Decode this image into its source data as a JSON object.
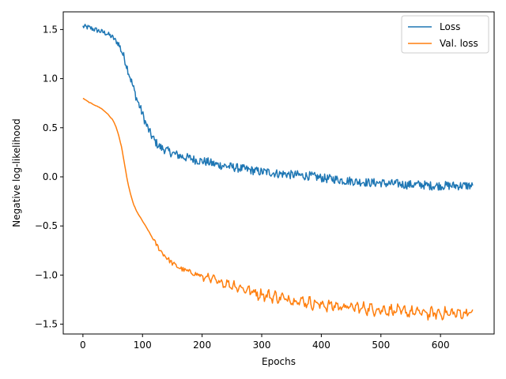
{
  "chart_data": {
    "type": "line",
    "title": "",
    "xlabel": "Epochs",
    "ylabel": "Negative log-likelihood",
    "xlim": [
      -33,
      690
    ],
    "ylim": [
      -1.6,
      1.68
    ],
    "x_ticks": [
      0,
      100,
      200,
      300,
      400,
      500,
      600
    ],
    "y_ticks": [
      -1.5,
      -1.0,
      -0.5,
      0.0,
      0.5,
      1.0,
      1.5
    ],
    "x_tick_labels": [
      "0",
      "100",
      "200",
      "300",
      "400",
      "500",
      "600"
    ],
    "y_tick_labels": [
      "−1.5",
      "−1.0",
      "−0.5",
      "0.0",
      "0.5",
      "1.0",
      "1.5"
    ],
    "grid": false,
    "legend_position": "top-right",
    "series": [
      {
        "name": "Loss",
        "color": "#1f77b4",
        "x": [
          0,
          10,
          20,
          30,
          40,
          50,
          60,
          65,
          70,
          75,
          80,
          85,
          90,
          95,
          100,
          105,
          110,
          115,
          120,
          125,
          130,
          140,
          150,
          160,
          170,
          180,
          190,
          200,
          210,
          220,
          230,
          240,
          250,
          260,
          270,
          280,
          290,
          300,
          310,
          320,
          330,
          340,
          350,
          360,
          370,
          380,
          390,
          400,
          410,
          420,
          430,
          440,
          450,
          460,
          470,
          480,
          490,
          500,
          510,
          520,
          530,
          540,
          550,
          560,
          570,
          580,
          590,
          600,
          610,
          620,
          630,
          640,
          650,
          655
        ],
        "y": [
          1.53,
          1.52,
          1.5,
          1.48,
          1.46,
          1.42,
          1.35,
          1.28,
          1.2,
          1.1,
          1.0,
          0.9,
          0.8,
          0.72,
          0.64,
          0.55,
          0.48,
          0.42,
          0.37,
          0.33,
          0.3,
          0.27,
          0.24,
          0.22,
          0.2,
          0.19,
          0.17,
          0.16,
          0.15,
          0.13,
          0.12,
          0.11,
          0.1,
          0.09,
          0.08,
          0.07,
          0.06,
          0.05,
          0.05,
          0.04,
          0.03,
          0.03,
          0.02,
          0.02,
          0.01,
          0.01,
          0.0,
          -0.01,
          -0.02,
          -0.02,
          -0.03,
          -0.04,
          -0.04,
          -0.05,
          -0.05,
          -0.06,
          -0.06,
          -0.06,
          -0.07,
          -0.07,
          -0.07,
          -0.08,
          -0.08,
          -0.08,
          -0.08,
          -0.09,
          -0.09,
          -0.09,
          -0.09,
          -0.09,
          -0.09,
          -0.09,
          -0.09,
          -0.1
        ],
        "noise": 0.045
      },
      {
        "name": "Val. loss",
        "color": "#ff7f0e",
        "x": [
          0,
          10,
          20,
          30,
          40,
          50,
          55,
          60,
          65,
          70,
          75,
          80,
          85,
          90,
          95,
          100,
          110,
          120,
          130,
          140,
          150,
          160,
          170,
          180,
          190,
          200,
          210,
          220,
          230,
          240,
          250,
          260,
          270,
          280,
          290,
          300,
          310,
          320,
          330,
          340,
          350,
          360,
          370,
          380,
          390,
          400,
          410,
          420,
          430,
          440,
          450,
          460,
          470,
          480,
          490,
          500,
          510,
          520,
          530,
          540,
          550,
          560,
          570,
          580,
          590,
          600,
          610,
          620,
          630,
          640,
          650,
          655
        ],
        "y": [
          0.8,
          0.76,
          0.73,
          0.7,
          0.65,
          0.58,
          0.52,
          0.42,
          0.3,
          0.12,
          -0.05,
          -0.18,
          -0.28,
          -0.35,
          -0.4,
          -0.45,
          -0.55,
          -0.66,
          -0.75,
          -0.82,
          -0.88,
          -0.92,
          -0.95,
          -0.97,
          -0.99,
          -1.01,
          -1.03,
          -1.05,
          -1.07,
          -1.09,
          -1.1,
          -1.12,
          -1.14,
          -1.16,
          -1.18,
          -1.2,
          -1.21,
          -1.22,
          -1.23,
          -1.24,
          -1.25,
          -1.26,
          -1.27,
          -1.28,
          -1.29,
          -1.3,
          -1.31,
          -1.31,
          -1.32,
          -1.32,
          -1.33,
          -1.33,
          -1.34,
          -1.34,
          -1.35,
          -1.35,
          -1.36,
          -1.36,
          -1.37,
          -1.37,
          -1.38,
          -1.38,
          -1.38,
          -1.39,
          -1.39,
          -1.39,
          -1.39,
          -1.39,
          -1.39,
          -1.39,
          -1.38,
          -1.37
        ],
        "noise": 0.025
      }
    ]
  }
}
